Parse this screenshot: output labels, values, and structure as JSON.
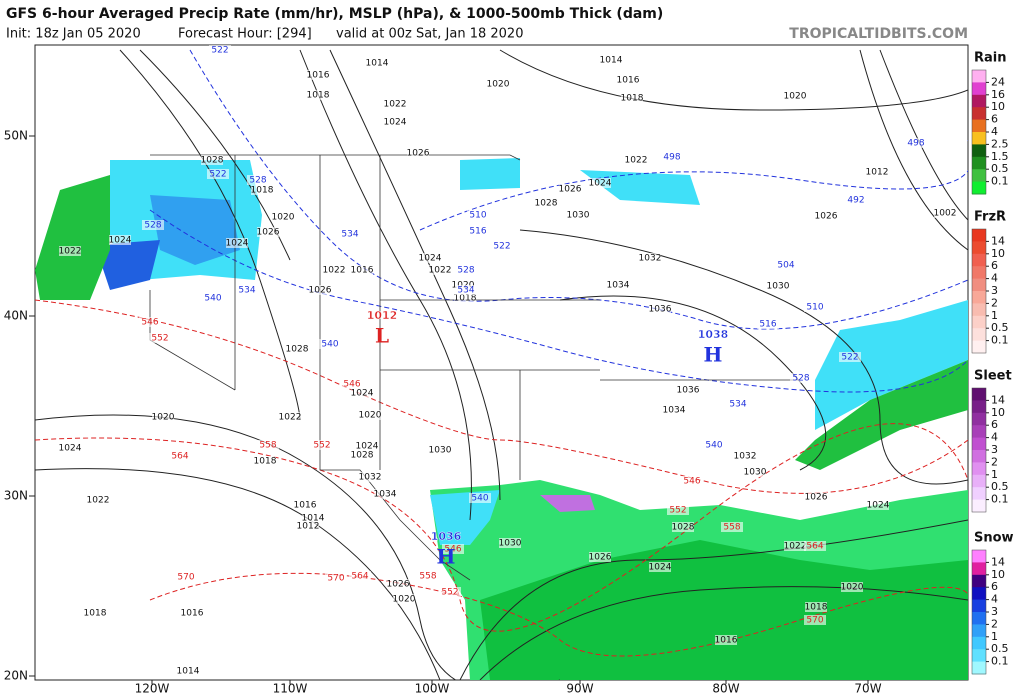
{
  "header": {
    "title": "GFS 6-hour Averaged Precip Rate (mm/hr), MSLP (hPa), & 1000-500mb Thick (dam)",
    "init": "Init: 18z Jan 05 2020",
    "forecast_hour": "Forecast Hour: [294]",
    "valid": "valid at 00z Sat, Jan 18 2020",
    "watermark": "TROPICALTIDBITS.COM"
  },
  "map": {
    "latitude_labels": [
      "50N",
      "40N",
      "30N",
      "20N"
    ],
    "longitude_labels": [
      "120W",
      "110W",
      "100W",
      "90W",
      "80W",
      "70W"
    ],
    "isobar_labels": [
      1014,
      1016,
      1018,
      1022,
      1024,
      1026,
      1020,
      1014,
      1016,
      1018,
      1020,
      1022,
      1024,
      1026,
      1028,
      1030,
      1032,
      1034,
      1036,
      1036,
      1034,
      1032,
      1030,
      1028,
      1018,
      1020,
      1026,
      1024,
      1024,
      1022,
      1022,
      1016,
      1024,
      1022,
      1020,
      1018,
      1026,
      1028,
      1024,
      1020,
      1022,
      1020,
      1024,
      1018,
      1024,
      1028,
      1030,
      1032,
      1034,
      1016,
      1014,
      1012,
      1022,
      1030,
      1028,
      1026,
      1024,
      1022,
      1026,
      1024,
      1020,
      1018,
      1016,
      1018,
      1016,
      1014,
      1026,
      1020,
      1030,
      1026,
      1002,
      1012
    ],
    "thickness_labels": [
      522,
      522,
      528,
      528,
      534,
      510,
      516,
      522,
      528,
      534,
      540,
      534,
      540,
      498,
      492,
      498,
      504,
      510,
      516,
      522,
      528,
      534,
      540,
      540
    ],
    "warm_thickness_labels": [
      546,
      552,
      546,
      558,
      552,
      564,
      546,
      552,
      558,
      564,
      570,
      570,
      564,
      558,
      552,
      546,
      570
    ],
    "pressure_centers": [
      {
        "value": 1012,
        "symbol": "L"
      },
      {
        "value": 1038,
        "symbol": "H"
      },
      {
        "value": 1036,
        "symbol": "H"
      }
    ]
  },
  "legend": [
    {
      "title": "Rain",
      "ticks": [
        24,
        16,
        10,
        6,
        4,
        2.5,
        1.5,
        0.5,
        0.1
      ]
    },
    {
      "title": "FrzR",
      "ticks": [
        14,
        10,
        6,
        4,
        3,
        2,
        1,
        0.5,
        0.1
      ]
    },
    {
      "title": "Sleet",
      "ticks": [
        14,
        10,
        6,
        4,
        3,
        2,
        1,
        0.5,
        0.1
      ]
    },
    {
      "title": "Snow",
      "ticks": [
        14,
        10,
        6,
        4,
        3,
        2,
        1,
        0.5,
        0.1
      ]
    }
  ]
}
